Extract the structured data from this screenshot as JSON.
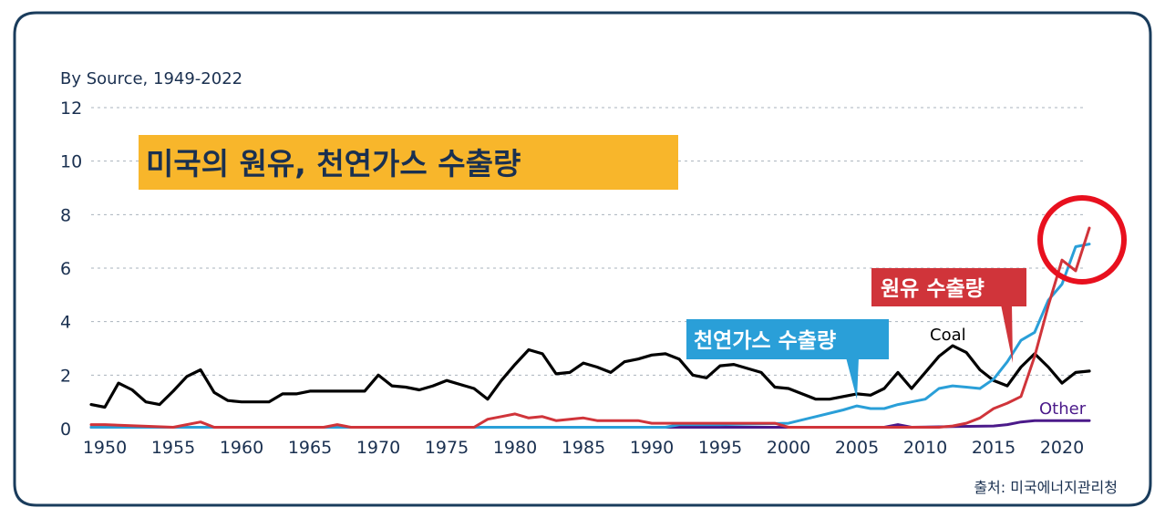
{
  "chart_data": {
    "type": "line",
    "subtitle": "By Source, 1949-2022",
    "title": "미국의 원유, 천연가스 수출량",
    "source": "출처: 미국에너지관리청",
    "xlim": [
      1949,
      2022
    ],
    "ylim": [
      0,
      12
    ],
    "x_ticks": [
      "1950",
      "1955",
      "1960",
      "1965",
      "1970",
      "1975",
      "1980",
      "1985",
      "1990",
      "1995",
      "2000",
      "2005",
      "2010",
      "2015",
      "2020"
    ],
    "y_ticks": [
      "0",
      "2",
      "4",
      "6",
      "8",
      "10",
      "12"
    ],
    "callouts": {
      "crude": "원유 수출량",
      "gas": "천연가스 수출량"
    },
    "colors": {
      "coal": "#000000",
      "crude": "#d0343a",
      "gas": "#2a9fd8",
      "other": "#4b1a8a",
      "title_bg": "#f8b62b",
      "circle": "#e8101e",
      "frame": "#1a3c5c"
    },
    "series": [
      {
        "name": "Coal",
        "color": "#000000",
        "points": [
          [
            1949,
            0.9
          ],
          [
            1950,
            0.8
          ],
          [
            1951,
            1.7
          ],
          [
            1952,
            1.45
          ],
          [
            1953,
            1.0
          ],
          [
            1954,
            0.9
          ],
          [
            1955,
            1.4
          ],
          [
            1956,
            1.95
          ],
          [
            1957,
            2.2
          ],
          [
            1958,
            1.35
          ],
          [
            1959,
            1.05
          ],
          [
            1960,
            1.0
          ],
          [
            1961,
            1.0
          ],
          [
            1962,
            1.0
          ],
          [
            1963,
            1.3
          ],
          [
            1964,
            1.3
          ],
          [
            1965,
            1.4
          ],
          [
            1966,
            1.4
          ],
          [
            1967,
            1.4
          ],
          [
            1968,
            1.4
          ],
          [
            1969,
            1.4
          ],
          [
            1970,
            2.0
          ],
          [
            1971,
            1.6
          ],
          [
            1972,
            1.55
          ],
          [
            1973,
            1.45
          ],
          [
            1974,
            1.6
          ],
          [
            1975,
            1.8
          ],
          [
            1976,
            1.65
          ],
          [
            1977,
            1.5
          ],
          [
            1978,
            1.1
          ],
          [
            1979,
            1.8
          ],
          [
            1980,
            2.4
          ],
          [
            1981,
            2.95
          ],
          [
            1982,
            2.8
          ],
          [
            1983,
            2.05
          ],
          [
            1984,
            2.1
          ],
          [
            1985,
            2.45
          ],
          [
            1986,
            2.3
          ],
          [
            1987,
            2.1
          ],
          [
            1988,
            2.5
          ],
          [
            1989,
            2.6
          ],
          [
            1990,
            2.75
          ],
          [
            1991,
            2.8
          ],
          [
            1992,
            2.6
          ],
          [
            1993,
            2.0
          ],
          [
            1994,
            1.9
          ],
          [
            1995,
            2.35
          ],
          [
            1996,
            2.4
          ],
          [
            1997,
            2.25
          ],
          [
            1998,
            2.1
          ],
          [
            1999,
            1.55
          ],
          [
            2000,
            1.5
          ],
          [
            2001,
            1.3
          ],
          [
            2002,
            1.1
          ],
          [
            2003,
            1.1
          ],
          [
            2004,
            1.2
          ],
          [
            2005,
            1.3
          ],
          [
            2006,
            1.25
          ],
          [
            2007,
            1.5
          ],
          [
            2008,
            2.1
          ],
          [
            2009,
            1.5
          ],
          [
            2010,
            2.1
          ],
          [
            2011,
            2.7
          ],
          [
            2012,
            3.1
          ],
          [
            2013,
            2.85
          ],
          [
            2014,
            2.2
          ],
          [
            2015,
            1.8
          ],
          [
            2016,
            1.6
          ],
          [
            2017,
            2.3
          ],
          [
            2018,
            2.8
          ],
          [
            2019,
            2.3
          ],
          [
            2020,
            1.7
          ],
          [
            2021,
            2.1
          ],
          [
            2022,
            2.15
          ]
        ]
      },
      {
        "name": "Other",
        "color": "#4b1a8a",
        "points": [
          [
            1949,
            0.05
          ],
          [
            1960,
            0.05
          ],
          [
            1970,
            0.05
          ],
          [
            1980,
            0.05
          ],
          [
            1990,
            0.05
          ],
          [
            2000,
            0.05
          ],
          [
            2007,
            0.05
          ],
          [
            2008,
            0.15
          ],
          [
            2009,
            0.05
          ],
          [
            2012,
            0.08
          ],
          [
            2015,
            0.1
          ],
          [
            2016,
            0.15
          ],
          [
            2017,
            0.25
          ],
          [
            2018,
            0.3
          ],
          [
            2019,
            0.3
          ],
          [
            2020,
            0.3
          ],
          [
            2021,
            0.3
          ],
          [
            2022,
            0.3
          ]
        ]
      },
      {
        "name": "",
        "color": "#d0343a",
        "points": [
          [
            1949,
            0.15
          ],
          [
            1950,
            0.15
          ],
          [
            1955,
            0.05
          ],
          [
            1957,
            0.25
          ],
          [
            1958,
            0.05
          ],
          [
            1960,
            0.05
          ],
          [
            1966,
            0.05
          ],
          [
            1967,
            0.15
          ],
          [
            1968,
            0.05
          ],
          [
            1977,
            0.05
          ],
          [
            1978,
            0.35
          ],
          [
            1979,
            0.45
          ],
          [
            1980,
            0.55
          ],
          [
            1981,
            0.4
          ],
          [
            1982,
            0.45
          ],
          [
            1983,
            0.3
          ],
          [
            1984,
            0.35
          ],
          [
            1985,
            0.4
          ],
          [
            1986,
            0.3
          ],
          [
            1987,
            0.3
          ],
          [
            1988,
            0.3
          ],
          [
            1989,
            0.3
          ],
          [
            1990,
            0.2
          ],
          [
            1991,
            0.2
          ],
          [
            1992,
            0.2
          ],
          [
            1995,
            0.2
          ],
          [
            1999,
            0.2
          ],
          [
            2000,
            0.05
          ],
          [
            2005,
            0.05
          ],
          [
            2010,
            0.05
          ],
          [
            2011,
            0.05
          ],
          [
            2012,
            0.1
          ],
          [
            2013,
            0.2
          ],
          [
            2014,
            0.4
          ],
          [
            2015,
            0.75
          ],
          [
            2016,
            0.95
          ],
          [
            2017,
            1.2
          ],
          [
            2018,
            2.7
          ],
          [
            2019,
            4.6
          ],
          [
            2020,
            6.3
          ],
          [
            2021,
            5.9
          ],
          [
            2022,
            7.5
          ]
        ]
      },
      {
        "name": "",
        "color": "#2a9fd8",
        "points": [
          [
            1949,
            0.05
          ],
          [
            1960,
            0.05
          ],
          [
            1970,
            0.05
          ],
          [
            1980,
            0.05
          ],
          [
            1990,
            0.05
          ],
          [
            1991,
            0.05
          ],
          [
            1992,
            0.15
          ],
          [
            1993,
            0.15
          ],
          [
            1995,
            0.15
          ],
          [
            2000,
            0.2
          ],
          [
            2002,
            0.45
          ],
          [
            2004,
            0.7
          ],
          [
            2005,
            0.85
          ],
          [
            2006,
            0.75
          ],
          [
            2007,
            0.75
          ],
          [
            2008,
            0.9
          ],
          [
            2009,
            1.0
          ],
          [
            2010,
            1.1
          ],
          [
            2011,
            1.5
          ],
          [
            2012,
            1.6
          ],
          [
            2013,
            1.55
          ],
          [
            2014,
            1.5
          ],
          [
            2015,
            1.85
          ],
          [
            2016,
            2.5
          ],
          [
            2017,
            3.3
          ],
          [
            2018,
            3.6
          ],
          [
            2019,
            4.8
          ],
          [
            2020,
            5.4
          ],
          [
            2021,
            6.8
          ],
          [
            2022,
            6.9
          ]
        ]
      }
    ]
  }
}
